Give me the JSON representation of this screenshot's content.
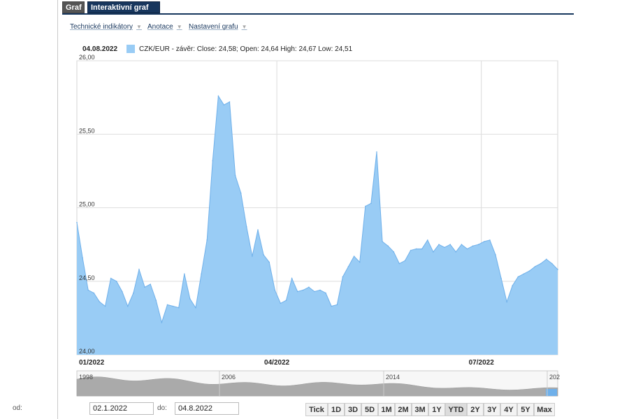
{
  "tabs": [
    {
      "label": "Graf"
    },
    {
      "label": "Interaktivní graf"
    }
  ],
  "menu": [
    {
      "label": "Technické indikátory"
    },
    {
      "label": "Anotace"
    },
    {
      "label": "Nastavení grafu"
    }
  ],
  "legend": {
    "date": "04.08.2022",
    "text": "CZK/EUR - závěr: Close: 24,58; Open: 24,64 High: 24,67 Low: 24,51",
    "color": "#99ccf5"
  },
  "chart_data": {
    "type": "area",
    "title": "",
    "xlabel": "",
    "ylabel": "",
    "series": [
      {
        "name": "CZK/EUR - závěr",
        "x_start": "2022-01-02",
        "x_end": "2022-08-04",
        "values": [
          24.9,
          24.66,
          24.44,
          24.42,
          24.36,
          24.33,
          24.52,
          24.5,
          24.43,
          24.33,
          24.42,
          24.58,
          24.46,
          24.48,
          24.37,
          24.22,
          24.34,
          24.33,
          24.32,
          24.55,
          24.38,
          24.32,
          24.55,
          24.78,
          25.32,
          25.76,
          25.7,
          25.72,
          25.22,
          25.1,
          24.87,
          24.67,
          24.85,
          24.68,
          24.63,
          24.44,
          24.35,
          24.37,
          24.52,
          24.43,
          24.44,
          24.46,
          24.43,
          24.44,
          24.42,
          24.33,
          24.34,
          24.53,
          24.6,
          24.67,
          24.63,
          25.01,
          25.03,
          25.38,
          24.77,
          24.74,
          24.7,
          24.62,
          24.64,
          24.71,
          24.72,
          24.72,
          24.78,
          24.7,
          24.75,
          24.73,
          24.75,
          24.7,
          24.75,
          24.72,
          24.74,
          24.75,
          24.77,
          24.78,
          24.68,
          24.52,
          24.36,
          24.47,
          24.53,
          24.55,
          24.57,
          24.6,
          24.62,
          24.65,
          24.62,
          24.58
        ],
        "color": "#99ccf5",
        "line_color": "#6fb0ea"
      }
    ],
    "y_ticks": [
      "24,00",
      "24,50",
      "25,00",
      "25,50",
      "26,00"
    ],
    "ylim": [
      24.0,
      26.0
    ],
    "x_ticks": [
      "01/2022",
      "04/2022",
      "07/2022"
    ],
    "grid": true,
    "navigator": {
      "labels": [
        "1998",
        "2006",
        "2014",
        "202"
      ],
      "color": "#aaaaaa"
    }
  },
  "range": {
    "from_label": "od:",
    "from_value": "02.1.2022",
    "to_label": "do:",
    "to_value": "04.8.2022"
  },
  "zoom_buttons": [
    "Tick",
    "1D",
    "3D",
    "5D",
    "1M",
    "2M",
    "3M",
    "1Y",
    "YTD",
    "2Y",
    "3Y",
    "4Y",
    "5Y",
    "Max"
  ],
  "zoom_selected": "YTD"
}
